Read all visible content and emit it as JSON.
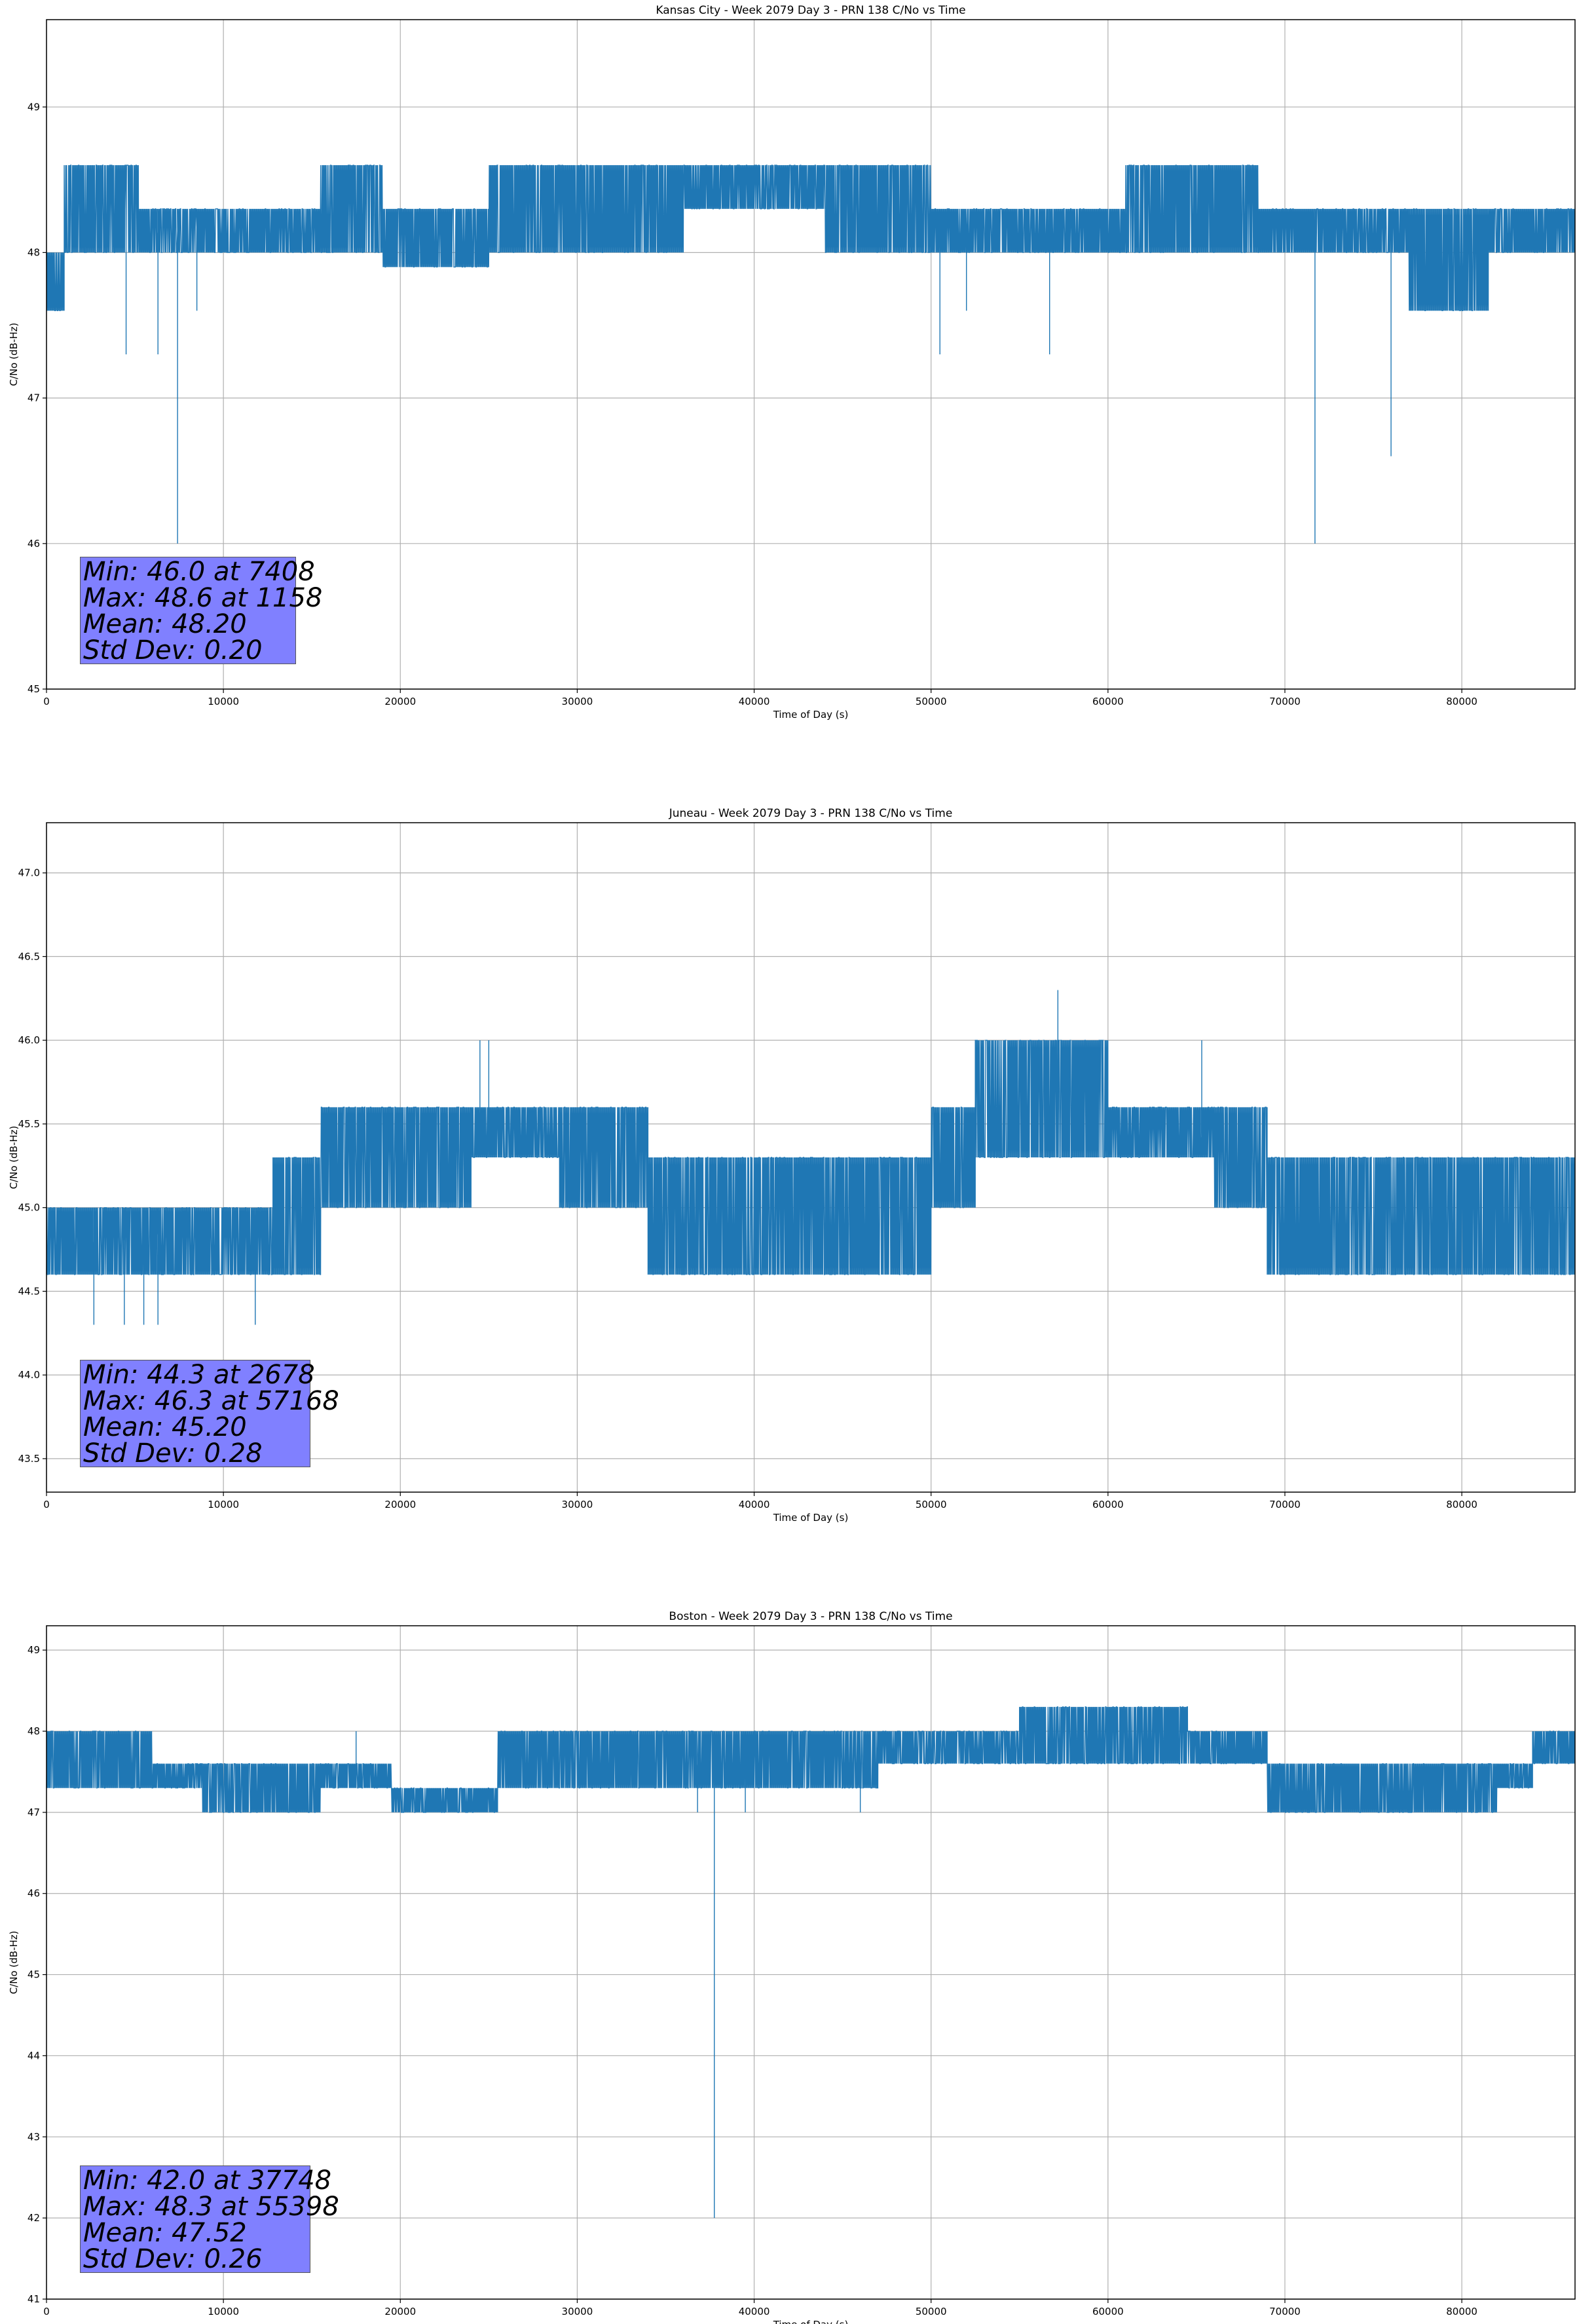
{
  "chart_data": [
    {
      "type": "line",
      "title": "Kansas City - Week 2079 Day 3 - PRN 138 C/No vs Time",
      "xlabel": "Time of Day (s)",
      "ylabel": "C/No (dB-Hz)",
      "xlim": [
        0,
        86400
      ],
      "ylim": [
        45.0,
        49.6
      ],
      "x_ticks": [
        0,
        10000,
        20000,
        30000,
        40000,
        50000,
        60000,
        70000,
        80000
      ],
      "y_ticks": [
        45,
        46,
        47,
        48,
        49
      ],
      "y_tick_decimals": 0,
      "grid": true,
      "line_color": "#1f77b4",
      "stats": {
        "min": "Min: 46.0 at 7408",
        "max": "Max: 48.6 at 1158",
        "mean": "Mean: 48.20",
        "std": "Std Dev: 0.20"
      },
      "band_segments": [
        {
          "x0": 0,
          "x1": 1000,
          "low": 47.6,
          "high": 48.0
        },
        {
          "x0": 1000,
          "x1": 5200,
          "low": 48.0,
          "high": 48.6
        },
        {
          "x0": 5200,
          "x1": 15500,
          "low": 48.0,
          "high": 48.3
        },
        {
          "x0": 15500,
          "x1": 19000,
          "low": 48.0,
          "high": 48.6
        },
        {
          "x0": 19000,
          "x1": 25000,
          "low": 47.9,
          "high": 48.3
        },
        {
          "x0": 25000,
          "x1": 36000,
          "low": 48.0,
          "high": 48.6
        },
        {
          "x0": 36000,
          "x1": 44000,
          "low": 48.3,
          "high": 48.6
        },
        {
          "x0": 44000,
          "x1": 50000,
          "low": 48.0,
          "high": 48.6
        },
        {
          "x0": 50000,
          "x1": 61000,
          "low": 48.0,
          "high": 48.3
        },
        {
          "x0": 61000,
          "x1": 68500,
          "low": 48.0,
          "high": 48.6
        },
        {
          "x0": 68500,
          "x1": 77000,
          "low": 48.0,
          "high": 48.3
        },
        {
          "x0": 77000,
          "x1": 81500,
          "low": 47.6,
          "high": 48.3
        },
        {
          "x0": 81500,
          "x1": 86400,
          "low": 48.0,
          "high": 48.3
        }
      ],
      "spikes": [
        {
          "x": 4500,
          "y": 47.3
        },
        {
          "x": 6300,
          "y": 47.3
        },
        {
          "x": 7408,
          "y": 46.0
        },
        {
          "x": 8500,
          "y": 47.6
        },
        {
          "x": 50500,
          "y": 47.3
        },
        {
          "x": 52000,
          "y": 47.6
        },
        {
          "x": 56700,
          "y": 47.3
        },
        {
          "x": 71700,
          "y": 46.0
        },
        {
          "x": 76000,
          "y": 46.6
        }
      ]
    },
    {
      "type": "line",
      "title": "Juneau - Week 2079 Day 3 - PRN 138 C/No vs Time",
      "xlabel": "Time of Day (s)",
      "ylabel": "C/No (dB-Hz)",
      "xlim": [
        0,
        86400
      ],
      "ylim": [
        43.3,
        47.3
      ],
      "x_ticks": [
        0,
        10000,
        20000,
        30000,
        40000,
        50000,
        60000,
        70000,
        80000
      ],
      "y_ticks": [
        43.5,
        44.0,
        44.5,
        45.0,
        45.5,
        46.0,
        46.5,
        47.0
      ],
      "y_tick_decimals": 1,
      "grid": true,
      "line_color": "#1f77b4",
      "stats": {
        "min": "Min: 44.3 at 2678",
        "max": "Max: 46.3 at 57168",
        "mean": "Mean: 45.20",
        "std": "Std Dev: 0.28"
      },
      "band_segments": [
        {
          "x0": 0,
          "x1": 12800,
          "low": 44.6,
          "high": 45.0
        },
        {
          "x0": 12800,
          "x1": 15500,
          "low": 44.6,
          "high": 45.3
        },
        {
          "x0": 15500,
          "x1": 24000,
          "low": 45.0,
          "high": 45.6
        },
        {
          "x0": 24000,
          "x1": 29000,
          "low": 45.3,
          "high": 45.6
        },
        {
          "x0": 29000,
          "x1": 34000,
          "low": 45.0,
          "high": 45.6
        },
        {
          "x0": 34000,
          "x1": 50000,
          "low": 44.6,
          "high": 45.3
        },
        {
          "x0": 50000,
          "x1": 52500,
          "low": 45.0,
          "high": 45.6
        },
        {
          "x0": 52500,
          "x1": 60000,
          "low": 45.3,
          "high": 46.0
        },
        {
          "x0": 60000,
          "x1": 66000,
          "low": 45.3,
          "high": 45.6
        },
        {
          "x0": 66000,
          "x1": 69000,
          "low": 45.0,
          "high": 45.6
        },
        {
          "x0": 69000,
          "x1": 86400,
          "low": 44.6,
          "high": 45.3
        }
      ],
      "spikes": [
        {
          "x": 2678,
          "y": 44.3
        },
        {
          "x": 4400,
          "y": 44.3
        },
        {
          "x": 5500,
          "y": 44.3
        },
        {
          "x": 6300,
          "y": 44.3
        },
        {
          "x": 11800,
          "y": 44.3
        },
        {
          "x": 24500,
          "y": 46.0
        },
        {
          "x": 25000,
          "y": 46.0
        },
        {
          "x": 57168,
          "y": 46.3
        },
        {
          "x": 65300,
          "y": 46.0
        }
      ]
    },
    {
      "type": "line",
      "title": "Boston - Week 2079 Day 3 - PRN 138 C/No vs Time",
      "xlabel": "Time of Day (s)",
      "ylabel": "C/No (dB-Hz)",
      "xlim": [
        0,
        86400
      ],
      "ylim": [
        41.0,
        49.3
      ],
      "x_ticks": [
        0,
        10000,
        20000,
        30000,
        40000,
        50000,
        60000,
        70000,
        80000
      ],
      "y_ticks": [
        41,
        42,
        43,
        44,
        45,
        46,
        47,
        48,
        49
      ],
      "y_tick_decimals": 0,
      "grid": true,
      "line_color": "#1f77b4",
      "stats": {
        "min": "Min: 42.0 at 37748",
        "max": "Max: 48.3 at 55398",
        "mean": "Mean: 47.52",
        "std": "Std Dev: 0.26"
      },
      "band_segments": [
        {
          "x0": 0,
          "x1": 6000,
          "low": 47.3,
          "high": 48.0
        },
        {
          "x0": 6000,
          "x1": 8800,
          "low": 47.3,
          "high": 47.6
        },
        {
          "x0": 8800,
          "x1": 15500,
          "low": 47.0,
          "high": 47.6
        },
        {
          "x0": 15500,
          "x1": 19500,
          "low": 47.3,
          "high": 47.6
        },
        {
          "x0": 19500,
          "x1": 25500,
          "low": 47.0,
          "high": 47.3
        },
        {
          "x0": 25500,
          "x1": 33000,
          "low": 47.3,
          "high": 48.0
        },
        {
          "x0": 33000,
          "x1": 47000,
          "low": 47.3,
          "high": 48.0
        },
        {
          "x0": 47000,
          "x1": 55000,
          "low": 47.6,
          "high": 48.0
        },
        {
          "x0": 55000,
          "x1": 64500,
          "low": 47.6,
          "high": 48.3
        },
        {
          "x0": 64500,
          "x1": 69000,
          "low": 47.6,
          "high": 48.0
        },
        {
          "x0": 69000,
          "x1": 82000,
          "low": 47.0,
          "high": 47.6
        },
        {
          "x0": 82000,
          "x1": 84000,
          "low": 47.3,
          "high": 47.6
        },
        {
          "x0": 84000,
          "x1": 86400,
          "low": 47.6,
          "high": 48.0
        }
      ],
      "spikes": [
        {
          "x": 37748,
          "y": 42.0
        },
        {
          "x": 17500,
          "y": 48.0
        },
        {
          "x": 36800,
          "y": 47.0
        },
        {
          "x": 39500,
          "y": 47.0
        },
        {
          "x": 46000,
          "y": 47.0
        }
      ]
    }
  ]
}
